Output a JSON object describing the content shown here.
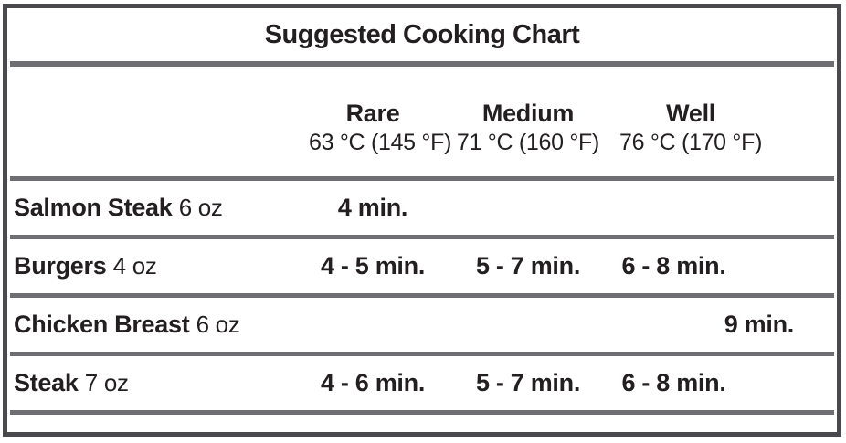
{
  "title": "Suggested Cooking Chart",
  "columns": [
    {
      "label": "Rare",
      "temp": "63 °C (145 °F)"
    },
    {
      "label": "Medium",
      "temp": "71 °C (160 °F)"
    },
    {
      "label": "Well",
      "temp": "76 °C (170 °F)"
    }
  ],
  "rows": [
    {
      "item": "Salmon Steak",
      "size": "6 oz",
      "rare": "4 min.",
      "medium": "",
      "well": ""
    },
    {
      "item": "Burgers",
      "size": "4 oz",
      "rare": "4 - 5 min.",
      "medium": "5 - 7 min.",
      "well": "6 - 8 min."
    },
    {
      "item": "Chicken Breast",
      "size": "6 oz",
      "rare": "",
      "medium": "",
      "well": "9 min."
    },
    {
      "item": "Steak",
      "size": "7 oz",
      "rare": "4 - 6 min.",
      "medium": "5 - 7 min.",
      "well": "6 - 8 min."
    }
  ],
  "colors": {
    "text": "#231f20",
    "border": "#4a4a4e",
    "separator": "#6f6f73"
  }
}
